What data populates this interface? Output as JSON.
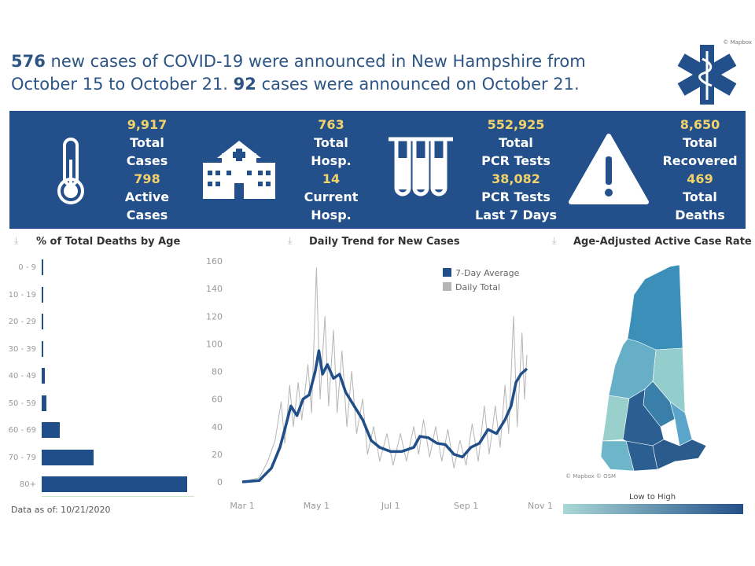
{
  "header": {
    "new_cases": "576",
    "headline_part1": " new cases of COVID-19 were announced in New Hampshire from October 15 to October 21. ",
    "day_cases": "92",
    "headline_part2": " cases were announced on October 21.",
    "mapbox_credit": "© Mapbox",
    "logo_icon": "star-of-life-icon"
  },
  "colors": {
    "banner": "#23508a",
    "accent_value": "#f2d36b",
    "bar": "#1f4e89",
    "avg_line": "#1f4e89",
    "daily_line": "#b5b5b5"
  },
  "stats": [
    {
      "icon": "thermometer-icon",
      "v1": "9,917",
      "l1a": "Total",
      "l1b": "Cases",
      "v2": "798",
      "l2a": "Active",
      "l2b": "Cases"
    },
    {
      "icon": "hospital-icon",
      "v1": "763",
      "l1a": "Total",
      "l1b": "Hosp.",
      "v2": "14",
      "l2a": "Current",
      "l2b": "Hosp."
    },
    {
      "icon": "test-tubes-icon",
      "v1": "552,925",
      "l1a": "Total",
      "l1b": "PCR Tests",
      "v2": "38,082",
      "l2a": "PCR Tests",
      "l2b": "Last 7 Days"
    },
    {
      "icon": "warning-icon",
      "v1": "8,650",
      "l1a": "Total",
      "l1b": "Recovered",
      "v2": "469",
      "l2a": "Total",
      "l2b": "Deaths"
    }
  ],
  "deaths_panel": {
    "title": "% of Total Deaths by Age",
    "data_as_of": "Data as of: 10/21/2020"
  },
  "trend_panel": {
    "title": "Daily Trend for New Cases"
  },
  "map_panel": {
    "title": "Age-Adjusted Active Case Rate",
    "credit": "© Mapbox © OSM",
    "legend_title": "Low to High",
    "legend_low": "#a9d9d6",
    "legend_high": "#24508a",
    "county_colors": [
      "#3c8fb8",
      "#66afc6",
      "#93cdcc",
      "#69b0c6",
      "#9ad0cc",
      "#3a7fa9",
      "#5aa5c9",
      "#2b5f92",
      "#2b5f92",
      "#2b5a8d",
      "#6db5c8"
    ]
  },
  "chart_data": [
    {
      "type": "bar",
      "orientation": "horizontal",
      "title": "% of Total Deaths by Age",
      "categories": [
        "0 - 9",
        "10 - 19",
        "20 - 29",
        "30 - 39",
        "40 - 49",
        "50 - 59",
        "60 - 69",
        "70 - 79",
        "80+"
      ],
      "values": [
        0.2,
        0.3,
        0.3,
        0.4,
        1.4,
        2.1,
        8,
        23,
        64
      ],
      "unit": "%"
    },
    {
      "type": "line",
      "title": "Daily Trend for New Cases",
      "xlim": [
        "2020-03-01",
        "2020-11-01"
      ],
      "x_ticks": [
        "Mar 1",
        "May 1",
        "Jul 1",
        "Sep 1",
        "Nov 1"
      ],
      "ylim": [
        0,
        160
      ],
      "y_ticks": [
        0,
        20,
        40,
        60,
        80,
        100,
        120,
        140,
        160
      ],
      "legend": "top-right",
      "series": [
        {
          "name": "7-Day Average",
          "points": [
            [
              "2020-03-01",
              0
            ],
            [
              "2020-03-15",
              1
            ],
            [
              "2020-03-25",
              10
            ],
            [
              "2020-04-01",
              25
            ],
            [
              "2020-04-05",
              38
            ],
            [
              "2020-04-10",
              55
            ],
            [
              "2020-04-15",
              48
            ],
            [
              "2020-04-20",
              60
            ],
            [
              "2020-04-25",
              63
            ],
            [
              "2020-04-30",
              80
            ],
            [
              "2020-05-03",
              95
            ],
            [
              "2020-05-06",
              78
            ],
            [
              "2020-05-10",
              85
            ],
            [
              "2020-05-15",
              75
            ],
            [
              "2020-05-20",
              78
            ],
            [
              "2020-05-25",
              65
            ],
            [
              "2020-06-01",
              55
            ],
            [
              "2020-06-08",
              45
            ],
            [
              "2020-06-15",
              30
            ],
            [
              "2020-06-22",
              25
            ],
            [
              "2020-07-01",
              22
            ],
            [
              "2020-07-10",
              22
            ],
            [
              "2020-07-20",
              25
            ],
            [
              "2020-07-25",
              33
            ],
            [
              "2020-08-01",
              32
            ],
            [
              "2020-08-08",
              28
            ],
            [
              "2020-08-15",
              27
            ],
            [
              "2020-08-22",
              20
            ],
            [
              "2020-08-29",
              18
            ],
            [
              "2020-09-05",
              25
            ],
            [
              "2020-09-12",
              28
            ],
            [
              "2020-09-19",
              38
            ],
            [
              "2020-09-26",
              35
            ],
            [
              "2020-10-03",
              45
            ],
            [
              "2020-10-08",
              55
            ],
            [
              "2020-10-12",
              72
            ],
            [
              "2020-10-16",
              78
            ],
            [
              "2020-10-21",
              82
            ]
          ]
        },
        {
          "name": "Daily Total",
          "points": [
            [
              "2020-03-01",
              0
            ],
            [
              "2020-03-15",
              3
            ],
            [
              "2020-03-22",
              15
            ],
            [
              "2020-03-28",
              30
            ],
            [
              "2020-04-02",
              58
            ],
            [
              "2020-04-05",
              28
            ],
            [
              "2020-04-09",
              70
            ],
            [
              "2020-04-12",
              40
            ],
            [
              "2020-04-16",
              72
            ],
            [
              "2020-04-19",
              45
            ],
            [
              "2020-04-24",
              85
            ],
            [
              "2020-04-27",
              50
            ],
            [
              "2020-05-01",
              155
            ],
            [
              "2020-05-04",
              60
            ],
            [
              "2020-05-08",
              120
            ],
            [
              "2020-05-11",
              55
            ],
            [
              "2020-05-15",
              110
            ],
            [
              "2020-05-18",
              50
            ],
            [
              "2020-05-22",
              95
            ],
            [
              "2020-05-26",
              40
            ],
            [
              "2020-05-30",
              80
            ],
            [
              "2020-06-03",
              35
            ],
            [
              "2020-06-08",
              60
            ],
            [
              "2020-06-12",
              20
            ],
            [
              "2020-06-17",
              40
            ],
            [
              "2020-06-22",
              15
            ],
            [
              "2020-06-28",
              35
            ],
            [
              "2020-07-03",
              12
            ],
            [
              "2020-07-09",
              35
            ],
            [
              "2020-07-14",
              15
            ],
            [
              "2020-07-20",
              40
            ],
            [
              "2020-07-24",
              20
            ],
            [
              "2020-07-28",
              45
            ],
            [
              "2020-08-02",
              18
            ],
            [
              "2020-08-07",
              40
            ],
            [
              "2020-08-12",
              15
            ],
            [
              "2020-08-17",
              38
            ],
            [
              "2020-08-22",
              10
            ],
            [
              "2020-08-27",
              30
            ],
            [
              "2020-09-01",
              12
            ],
            [
              "2020-09-06",
              42
            ],
            [
              "2020-09-11",
              15
            ],
            [
              "2020-09-16",
              55
            ],
            [
              "2020-09-20",
              20
            ],
            [
              "2020-09-25",
              55
            ],
            [
              "2020-09-29",
              25
            ],
            [
              "2020-10-03",
              70
            ],
            [
              "2020-10-06",
              35
            ],
            [
              "2020-10-10",
              120
            ],
            [
              "2020-10-13",
              40
            ],
            [
              "2020-10-17",
              108
            ],
            [
              "2020-10-19",
              60
            ],
            [
              "2020-10-21",
              92
            ]
          ]
        }
      ]
    }
  ]
}
